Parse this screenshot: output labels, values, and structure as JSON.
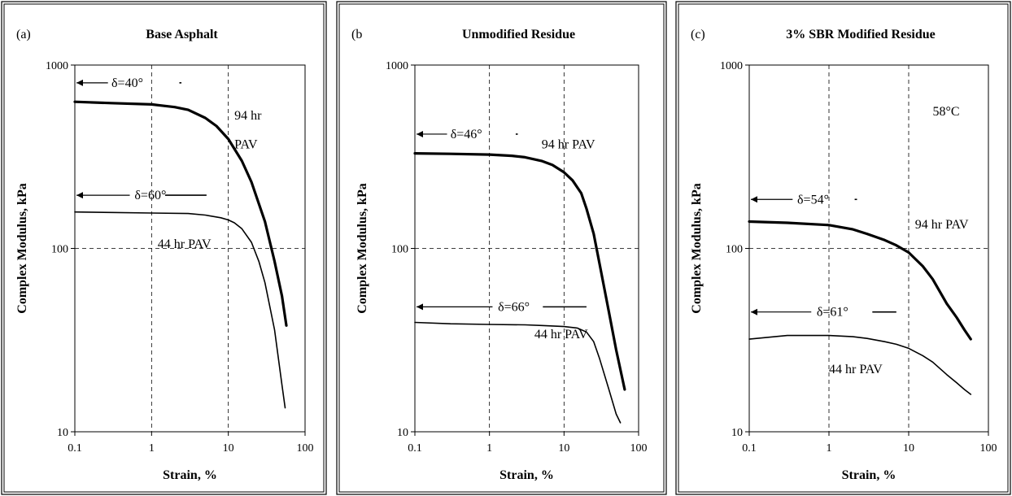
{
  "chart_data": [
    {
      "type": "line",
      "panel_label": "(a)",
      "title": "Base Asphalt",
      "xlabel": "Strain, %",
      "ylabel": "Complex Modulus, kPa",
      "xscale": "log",
      "yscale": "log",
      "xlim": [
        0.1,
        100
      ],
      "ylim": [
        10,
        1000
      ],
      "xticks": [
        "0.1",
        "1",
        "10",
        "100"
      ],
      "yticks": [
        "10",
        "100",
        "1000"
      ],
      "grid": "dashed",
      "series": [
        {
          "name": "94 hr PAV",
          "x": [
            0.1,
            0.3,
            1,
            2,
            3,
            5,
            7,
            10,
            15,
            20,
            30,
            40,
            50,
            57
          ],
          "y": [
            630,
            620,
            610,
            590,
            570,
            515,
            465,
            395,
            300,
            230,
            140,
            85,
            55,
            38
          ]
        },
        {
          "name": "44 hr PAV",
          "x": [
            0.1,
            0.3,
            1,
            3,
            5,
            8,
            10,
            12,
            15,
            20,
            25,
            30,
            40,
            50,
            55
          ],
          "y": [
            158,
            157,
            156,
            155,
            152,
            147,
            143,
            138,
            128,
            108,
            85,
            65,
            36,
            18,
            13.5
          ]
        }
      ],
      "annotations": [
        {
          "text": "δ=40°",
          "x": 0.3,
          "y": 800
        },
        {
          "text": "94 hr",
          "x": 12,
          "y": 530
        },
        {
          "text": "PAV",
          "x": 12,
          "y": 370
        },
        {
          "text": "δ=60°",
          "x": 0.6,
          "y": 195
        },
        {
          "text": "44 hr PAV",
          "x": 1.2,
          "y": 106
        }
      ]
    },
    {
      "type": "line",
      "panel_label": "(b",
      "title": "Unmodified Residue",
      "xlabel": "Strain, %",
      "ylabel": "Complex Modulus, kPa",
      "xscale": "log",
      "yscale": "log",
      "xlim": [
        0.1,
        100
      ],
      "ylim": [
        10,
        1000
      ],
      "xticks": [
        "0.1",
        "1",
        "10",
        "100"
      ],
      "yticks": [
        "10",
        "100",
        "1000"
      ],
      "grid": "dashed",
      "series": [
        {
          "name": "94 hr PAV",
          "x": [
            0.1,
            0.3,
            1,
            2,
            3,
            5,
            7,
            10,
            13,
            17,
            20,
            25,
            30,
            40,
            50,
            65
          ],
          "y": [
            330,
            328,
            325,
            320,
            314,
            300,
            285,
            260,
            235,
            200,
            165,
            120,
            82,
            45,
            28,
            17
          ]
        },
        {
          "name": "44 hr PAV",
          "x": [
            0.1,
            0.3,
            1,
            3,
            5,
            10,
            15,
            20,
            25,
            30,
            40,
            50,
            57
          ],
          "y": [
            39.5,
            38.8,
            38.5,
            38.3,
            38.0,
            37.5,
            36.8,
            35.0,
            31.0,
            25.0,
            17.0,
            12.5,
            11.2
          ]
        }
      ],
      "annotations": [
        {
          "text": "δ=46°",
          "x": 0.3,
          "y": 420
        },
        {
          "text": "94 hr PAV",
          "x": 5,
          "y": 370
        },
        {
          "text": "δ=66°",
          "x": 1.3,
          "y": 48
        },
        {
          "text": "44 hr PAV",
          "x": 4,
          "y": 34
        }
      ]
    },
    {
      "type": "line",
      "panel_label": "(c)",
      "title": "3% SBR Modified Residue",
      "xlabel": "Strain, %",
      "ylabel": "Complex Modulus, kPa",
      "xscale": "log",
      "yscale": "log",
      "xlim": [
        0.1,
        100
      ],
      "ylim": [
        10,
        1000
      ],
      "xticks": [
        "0.1",
        "1",
        "10",
        "100"
      ],
      "yticks": [
        "10",
        "100",
        "1000"
      ],
      "grid": "dashed",
      "series": [
        {
          "name": "94 hr PAV",
          "x": [
            0.1,
            0.3,
            1,
            2,
            3,
            5,
            7,
            10,
            15,
            20,
            30,
            40,
            50,
            60
          ],
          "y": [
            140,
            138,
            134,
            127,
            120,
            111,
            104,
            95,
            80,
            68,
            50,
            42,
            36,
            32
          ]
        },
        {
          "name": "44 hr PAV",
          "x": [
            0.1,
            0.3,
            1,
            2,
            3,
            5,
            7,
            10,
            15,
            20,
            30,
            40,
            50,
            60
          ],
          "y": [
            32,
            33.5,
            33.5,
            33,
            32.3,
            31,
            30,
            28.5,
            26,
            24,
            20.5,
            18.5,
            17,
            16
          ]
        }
      ],
      "annotations": [
        {
          "text": "58°C",
          "x": 20,
          "y": 560
        },
        {
          "text": "δ=54°",
          "x": 0.4,
          "y": 185
        },
        {
          "text": "94 hr PAV",
          "x": 12,
          "y": 135
        },
        {
          "text": "δ=61°",
          "x": 0.7,
          "y": 45
        },
        {
          "text": "44 hr PAV",
          "x": 1,
          "y": 22
        }
      ]
    }
  ]
}
